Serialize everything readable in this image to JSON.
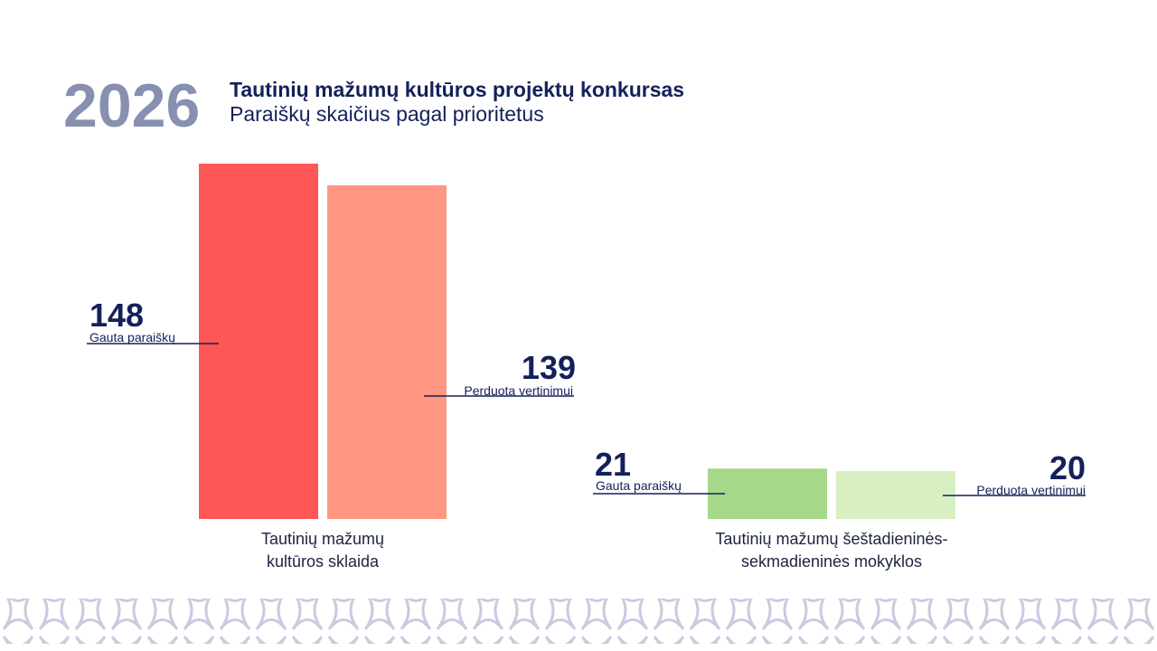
{
  "chart_data": {
    "type": "bar",
    "year": "2026",
    "title": "Tautinių mažumų kultūros projektų konkursas",
    "subtitle": "Paraiškų skaičius pagal prioritetus",
    "categories": [
      "Tautinių mažumų kultūros sklaida",
      "Tautinių mažumų šeštadieninės-sekmadieninės mokyklos"
    ],
    "series": [
      {
        "name": "Gauta paraiškų",
        "colors": [
          "#ff5757",
          "#a6d889"
        ],
        "values": [
          148,
          21
        ]
      },
      {
        "name": "Perduota vertinimui",
        "colors": [
          "#ff9782",
          "#d8efc2"
        ],
        "values": [
          139,
          20
        ]
      }
    ]
  }
}
